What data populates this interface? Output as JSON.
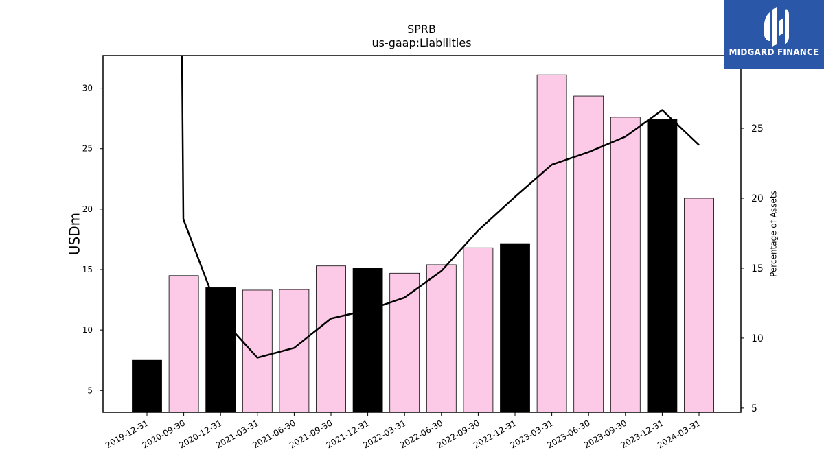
{
  "chart_data": {
    "type": "bar",
    "title": "SPRB",
    "subtitle": "us-gaap:Liabilities",
    "ylabel": "USDm",
    "y2label": "Percentage of Assets",
    "categories": [
      "2019-12-31",
      "2020-09-30",
      "2020-12-31",
      "2021-03-31",
      "2021-06-30",
      "2021-09-30",
      "2021-12-31",
      "2022-03-31",
      "2022-06-30",
      "2022-09-30",
      "2022-12-31",
      "2023-03-31",
      "2023-06-30",
      "2023-09-30",
      "2023-12-31",
      "2024-03-31"
    ],
    "series": [
      {
        "type": "bar",
        "axis": "left",
        "values": [
          7.5,
          14.5,
          13.5,
          13.3,
          13.35,
          15.3,
          15.1,
          14.7,
          15.4,
          16.8,
          17.15,
          31.1,
          29.35,
          27.6,
          27.4,
          20.9
        ],
        "colors": [
          "#000000",
          "#fccae6",
          "#000000",
          "#fccae6",
          "#fccae6",
          "#fccae6",
          "#000000",
          "#fccae6",
          "#fccae6",
          "#fccae6",
          "#000000",
          "#fccae6",
          "#fccae6",
          "#fccae6",
          "#000000",
          "#fccae6"
        ]
      },
      {
        "type": "line",
        "axis": "right",
        "color": "#000000",
        "values": [
          48,
          18.5,
          11.5,
          8.6,
          9.3,
          11.4,
          12.0,
          12.9,
          14.8,
          17.7,
          20.1,
          22.4,
          23.3,
          24.4,
          26.3,
          23.8
        ]
      }
    ],
    "ylim": [
      3.2,
      32.7
    ],
    "yticks": [
      5,
      10,
      15,
      20,
      25,
      30
    ],
    "y2lim": [
      4.7,
      30.2
    ],
    "y2ticks": [
      5,
      10,
      15,
      20,
      25
    ],
    "grid": false,
    "legend": "none"
  },
  "logo": {
    "text": "MIDGARD FINANCE",
    "color": "#2b57a8"
  }
}
